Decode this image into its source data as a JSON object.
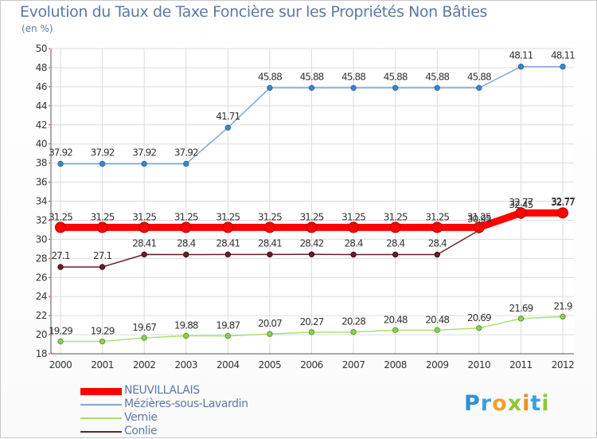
{
  "chart_data": {
    "type": "line",
    "title": "Evolution du Taux de Taxe Foncière sur les Propriétés Non Bâties",
    "ylabel": "(en %)",
    "xlabel": "",
    "ylim": [
      18,
      50
    ],
    "y_ticks": [
      18,
      20,
      22,
      24,
      26,
      28,
      30,
      32,
      34,
      36,
      38,
      40,
      42,
      44,
      46,
      48,
      50
    ],
    "categories": [
      "2000",
      "2001",
      "2002",
      "2003",
      "2004",
      "2005",
      "2006",
      "2007",
      "2008",
      "2009",
      "2010",
      "2011",
      "2012"
    ],
    "grid": true,
    "legend_position": "bottom-left",
    "series": [
      {
        "name": "NEUVILLALAIS",
        "color": "#ff0000",
        "values": [
          31.25,
          31.25,
          31.25,
          31.25,
          31.25,
          31.25,
          31.25,
          31.25,
          31.25,
          31.25,
          31.25,
          32.77,
          32.77
        ],
        "labels": [
          "31.25",
          "31.25",
          "31.25",
          "31.25",
          "31.25",
          "31.25",
          "31.25",
          "31.25",
          "31.25",
          "31.25",
          "31.25",
          "32.77",
          "32.77"
        ]
      },
      {
        "name": "Mézières-sous-Lavardin",
        "color": "#7fa7d6",
        "values": [
          37.92,
          37.92,
          37.92,
          37.92,
          41.71,
          45.88,
          45.88,
          45.88,
          45.88,
          45.88,
          45.88,
          48.11,
          48.11
        ],
        "labels": [
          "37.92",
          "37.92",
          "37.92",
          "37.92",
          "41.71",
          "45.88",
          "45.88",
          "45.88",
          "45.88",
          "45.88",
          "45.88",
          "48.11",
          "48.11"
        ]
      },
      {
        "name": "Vernie",
        "color": "#a8e070",
        "values": [
          19.29,
          19.29,
          19.67,
          19.88,
          19.87,
          20.07,
          20.27,
          20.28,
          20.48,
          20.48,
          20.69,
          21.69,
          21.9
        ],
        "labels": [
          "19.29",
          "19.29",
          "19.67",
          "19.88",
          "19.87",
          "20.07",
          "20.27",
          "20.28",
          "20.48",
          "20.48",
          "20.69",
          "21.69",
          "21.9"
        ]
      },
      {
        "name": "Conlie",
        "color": "#6b1f2a",
        "values": [
          27.1,
          27.1,
          28.41,
          28.4,
          28.41,
          28.41,
          28.42,
          28.4,
          28.4,
          28.4,
          30.95,
          32.45,
          32.77
        ],
        "labels": [
          "27.1",
          "27.1",
          "28.41",
          "28.4",
          "28.41",
          "28.41",
          "28.42",
          "28.4",
          "28.4",
          "28.4",
          "30.95",
          "32.45",
          "32.77"
        ]
      }
    ]
  },
  "logo": {
    "text": "Proxiti",
    "letters": [
      {
        "ch": "P",
        "color": "#2f8fd8"
      },
      {
        "ch": "r",
        "color": "#3aa0e0"
      },
      {
        "ch": "o",
        "color": "#f0a030"
      },
      {
        "ch": "x",
        "color": "#8fc63a"
      },
      {
        "ch": "i",
        "color": "#f08a2a"
      },
      {
        "ch": "t",
        "color": "#3aa0e0"
      },
      {
        "ch": "i",
        "color": "#8fc63a"
      }
    ]
  }
}
